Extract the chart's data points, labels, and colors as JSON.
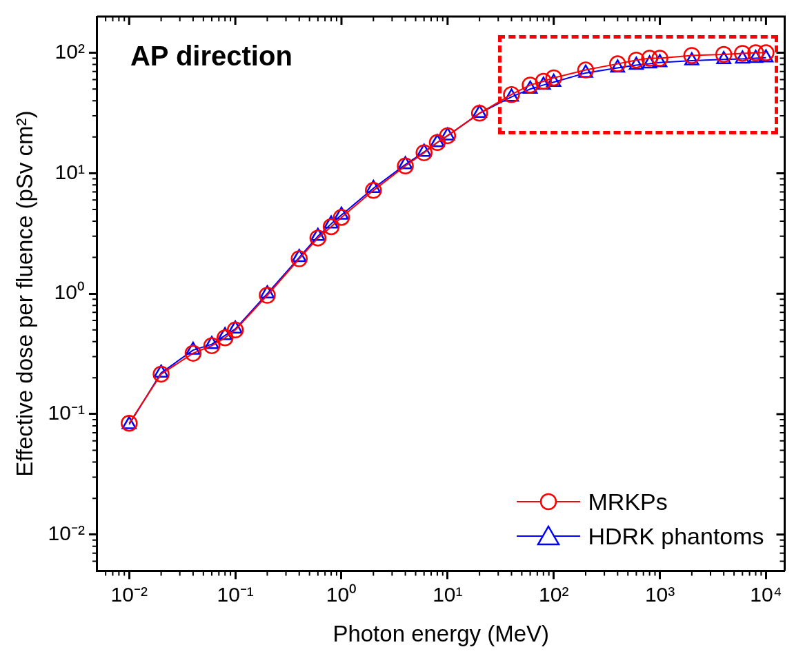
{
  "chart_data": {
    "type": "line",
    "title": "AP direction",
    "xlabel": "Photon energy (MeV)",
    "ylabel": "Effective dose per fluence (pSv cm²)",
    "x": [
      0.01,
      0.02,
      0.04,
      0.06,
      0.08,
      0.1,
      0.2,
      0.4,
      0.6,
      0.8,
      1,
      2,
      4,
      6,
      8,
      10,
      20,
      40,
      60,
      80,
      100,
      200,
      400,
      600,
      800,
      1000,
      2000,
      4000,
      6000,
      8000,
      10000
    ],
    "series": [
      {
        "name": "MRKPs",
        "color": "#ff0000",
        "marker": "circle",
        "values": [
          0.084,
          0.215,
          0.32,
          0.37,
          0.43,
          0.5,
          0.97,
          1.95,
          2.9,
          3.6,
          4.3,
          7.2,
          11.5,
          14.8,
          18,
          20.5,
          31.5,
          45,
          54,
          58,
          62,
          72,
          81,
          87,
          90,
          90,
          95,
          97,
          99,
          100,
          100
        ]
      },
      {
        "name": "HDRK phantoms",
        "color": "#0000ff",
        "marker": "triangle",
        "values": [
          0.082,
          0.22,
          0.34,
          0.38,
          0.45,
          0.51,
          1.0,
          2.0,
          3.0,
          3.8,
          4.5,
          7.5,
          11.8,
          15,
          18,
          20.5,
          31.5,
          43,
          50,
          54,
          57,
          68,
          75,
          79,
          81,
          83,
          86,
          88,
          89,
          90,
          91
        ]
      }
    ],
    "log": "xy",
    "grid": false,
    "legend": "bottom right",
    "line_style": "solid",
    "xlim": [
      0.005,
      15000
    ],
    "xticks": [
      {
        "value": 0.01,
        "label": "10⁻²"
      },
      {
        "value": 0.1,
        "label": "10⁻¹"
      },
      {
        "value": 1,
        "label": "10⁰"
      },
      {
        "value": 10,
        "label": "10¹"
      },
      {
        "value": 100,
        "label": "10²"
      },
      {
        "value": 1000,
        "label": "10³"
      },
      {
        "value": 10000,
        "label": "10⁴"
      }
    ],
    "ylim": [
      0.005,
      200
    ],
    "yticks": [
      {
        "value": 0.01,
        "label": "10⁻²"
      },
      {
        "value": 0.1,
        "label": "10⁻¹"
      },
      {
        "value": 1,
        "label": "10⁰"
      },
      {
        "value": 10,
        "label": "10¹"
      },
      {
        "value": 100,
        "label": "10²"
      }
    ]
  }
}
